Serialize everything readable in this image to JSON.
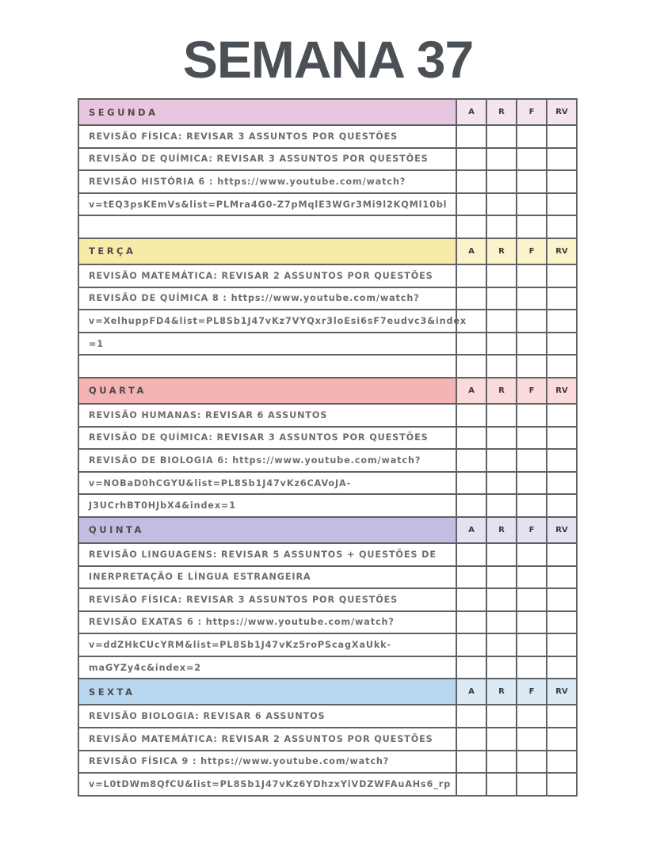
{
  "title": "SEMANA 37",
  "columns": [
    "A",
    "R",
    "F",
    "RV"
  ],
  "sections": [
    {
      "day": "SEGUNDA",
      "color": "#e8c6e0",
      "light": "#f4e4f0",
      "rows": [
        "REVISÃO FÍSICA: REVISAR 3 ASSUNTOS POR QUESTÕES",
        "REVISÃO DE QUÍMICA: REVISAR 3 ASSUNTOS POR QUESTÕES",
        "REVISÃO HISTÓRIA 6 : https://www.youtube.com/watch?",
        "v=tEQ3psKEmVs&list=PLMra4G0-Z7pMqlE3WGr3Mi9l2KQMl10bl",
        ""
      ]
    },
    {
      "day": "TERÇA",
      "color": "#f8eaa9",
      "light": "#fbf3cc",
      "rows": [
        "REVISÃO MATEMÁTICA: REVISAR 2 ASSUNTOS POR QUESTÕES",
        "REVISÃO DE QUÍMICA 8 : https://www.youtube.com/watch?",
        "v=XelhuppFD4&list=PL8Sb1J47vKz7VYQxr3loEsi6sF7eudvc3&index",
        "=1",
        ""
      ]
    },
    {
      "day": "QUARTA",
      "color": "#f5b4b4",
      "light": "#fadada",
      "rows": [
        "REVISÃO HUMANAS: REVISAR 6 ASSUNTOS",
        "REVISÃO DE QUÍMICA: REVISAR 3 ASSUNTOS POR QUESTÕES",
        "REVISÃO DE BIOLOGIA 6: https://www.youtube.com/watch?",
        "v=NOBaD0hCGYU&list=PL8Sb1J47vKz6CAVoJA-",
        "J3UCrhBT0HJbX4&index=1"
      ]
    },
    {
      "day": "QUINTA",
      "color": "#c3bde1",
      "light": "#e4e1f1",
      "rows": [
        "REVISÃO LINGUAGENS: REVISAR 5 ASSUNTOS + QUESTÕES DE",
        "INERPRETAÇÃO E LÍNGUA ESTRANGEIRA",
        "REVISÃO FÍSICA: REVISAR 3 ASSUNTOS POR QUESTÕES",
        "REVISÃO EXATAS 6 : https://www.youtube.com/watch?",
        "v=ddZHkCUcYRM&list=PL8Sb1J47vKz5roPScagXaUkk-",
        "maGYZy4c&index=2"
      ]
    },
    {
      "day": "SEXTA",
      "color": "#b9d7ef",
      "light": "#dceaf6",
      "rows": [
        "REVISÃO BIOLOGIA: REVISAR 6 ASSUNTOS",
        "REVISÃO MATEMÁTICA: REVISAR 2 ASSUNTOS POR QUESTÕES",
        "REVISÃO FÍSICA 9 : https://www.youtube.com/watch?",
        "v=L0tDWm8QfCU&list=PL8Sb1J47vKz6YDhzxYiVDZWFAuAHs6_rp"
      ]
    }
  ]
}
